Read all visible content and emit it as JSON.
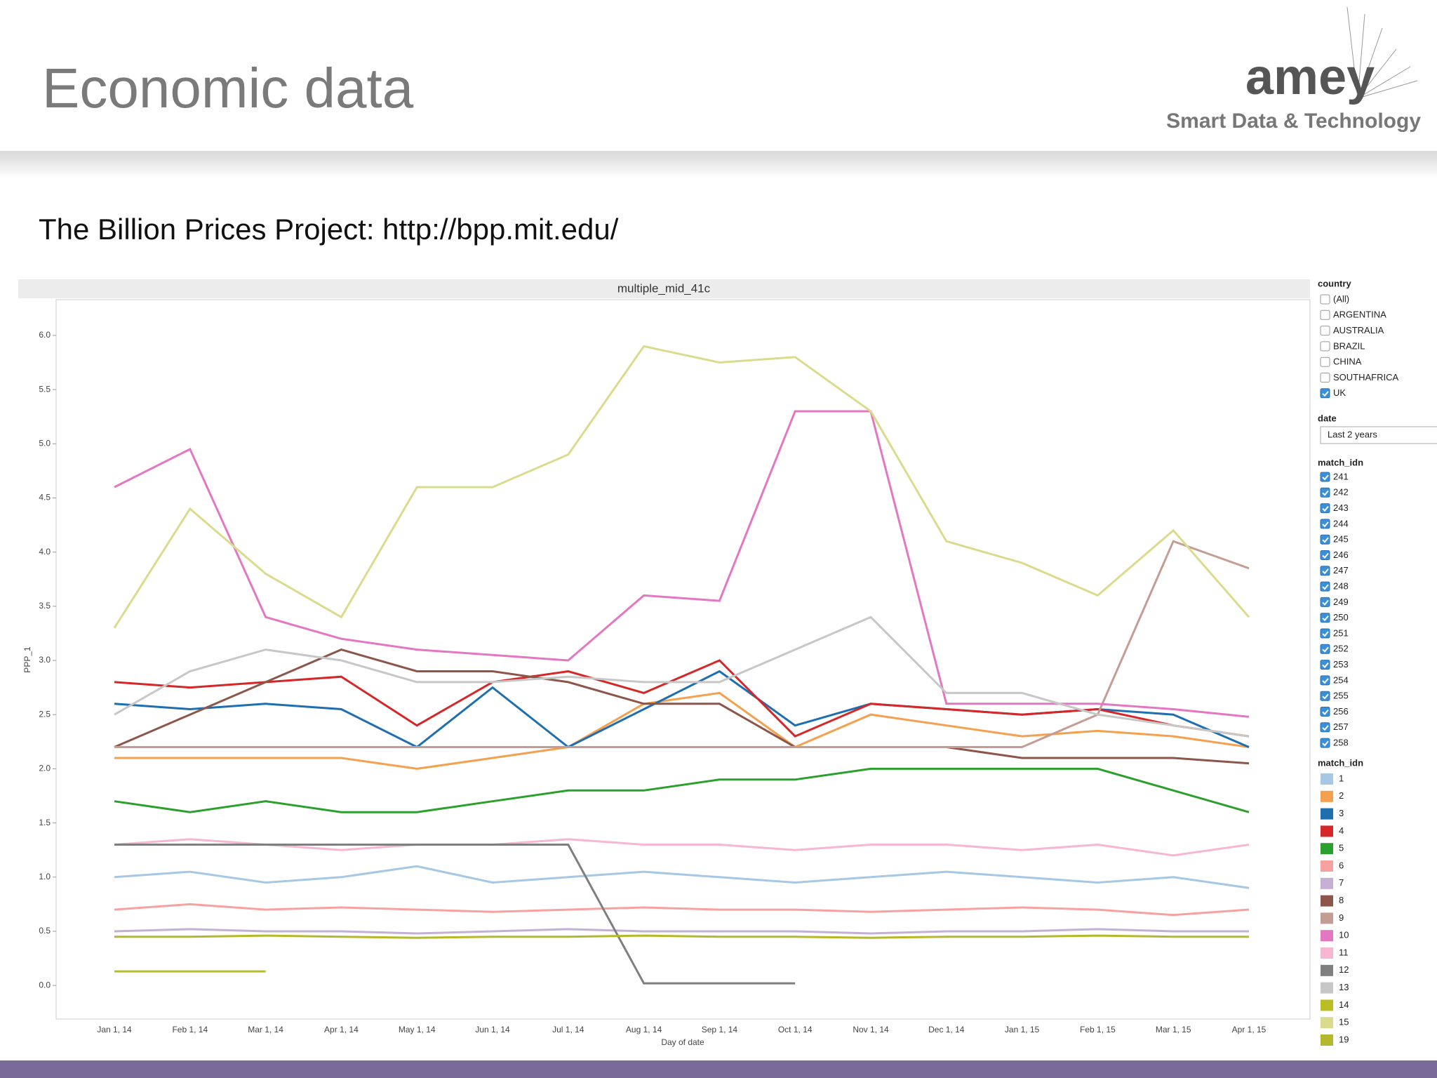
{
  "header": {
    "title": "Economic data",
    "logo": "amey",
    "tagline": "Smart Data & Technology"
  },
  "subtitle": "The Billion Prices Project: http://bpp.mit.edu/",
  "chart_data": {
    "type": "line",
    "title": "multiple_mid_41c",
    "x_label": "Day of date",
    "y_label": "PPP_1",
    "categories": [
      "Jan 1, 14",
      "Feb 1, 14",
      "Mar 1, 14",
      "Apr 1, 14",
      "May 1, 14",
      "Jun 1, 14",
      "Jul 1, 14",
      "Aug 1, 14",
      "Sep 1, 14",
      "Oct 1, 14",
      "Nov 1, 14",
      "Dec 1, 14",
      "Jan 1, 15",
      "Feb 1, 15",
      "Mar 1, 15",
      "Apr 1, 15"
    ],
    "ylim": [
      -0.31,
      6.33
    ],
    "yticks": [
      {
        "value": 0,
        "label": "0.0"
      },
      {
        "value": 0.5,
        "label": "0.5"
      },
      {
        "value": 1,
        "label": "1.0"
      },
      {
        "value": 1.5,
        "label": "1.5"
      },
      {
        "value": 2,
        "label": "2.0"
      },
      {
        "value": 2.5,
        "label": "2.5"
      },
      {
        "value": 3,
        "label": "3.0"
      },
      {
        "value": 3.5,
        "label": "3.5"
      },
      {
        "value": 4,
        "label": "4.0"
      },
      {
        "value": 4.5,
        "label": "4.5"
      },
      {
        "value": 5,
        "label": "5.0"
      },
      {
        "value": 5.5,
        "label": "5.5"
      },
      {
        "value": 6,
        "label": "6.0"
      }
    ],
    "legend_title": "match_idn",
    "series": [
      {
        "name": "1",
        "color": "#a6c8e4",
        "values": [
          1.0,
          1.05,
          0.95,
          1.0,
          1.1,
          0.95,
          1.0,
          1.05,
          1.0,
          0.95,
          1.0,
          1.05,
          1.0,
          0.95,
          1.0,
          0.9
        ]
      },
      {
        "name": "2",
        "color": "#f5a04e",
        "values": [
          2.1,
          2.1,
          2.1,
          2.1,
          2.0,
          2.1,
          2.2,
          2.6,
          2.7,
          2.2,
          2.5,
          2.4,
          2.3,
          2.35,
          2.3,
          2.2
        ]
      },
      {
        "name": "3",
        "color": "#1f6fb0",
        "values": [
          2.6,
          2.55,
          2.6,
          2.55,
          2.2,
          2.75,
          2.2,
          2.55,
          2.9,
          2.4,
          2.6,
          2.55,
          2.5,
          2.55,
          2.5,
          2.2
        ]
      },
      {
        "name": "4",
        "color": "#d62728",
        "values": [
          2.8,
          2.75,
          2.8,
          2.85,
          2.4,
          2.8,
          2.9,
          2.7,
          3.0,
          2.3,
          2.6,
          2.55,
          2.5,
          2.55,
          2.4,
          2.3
        ]
      },
      {
        "name": "5",
        "color": "#2ca02c",
        "values": [
          1.7,
          1.6,
          1.7,
          1.6,
          1.6,
          1.7,
          1.8,
          1.8,
          1.9,
          1.9,
          2.0,
          2.0,
          2.0,
          2.0,
          1.8,
          1.6
        ]
      },
      {
        "name": "6",
        "color": "#f7a1a0",
        "values": [
          0.7,
          0.75,
          0.7,
          0.72,
          0.7,
          0.68,
          0.7,
          0.72,
          0.7,
          0.7,
          0.68,
          0.7,
          0.72,
          0.7,
          0.65,
          0.7
        ]
      },
      {
        "name": "7",
        "color": "#c5b0d5",
        "values": [
          0.5,
          0.52,
          0.5,
          0.5,
          0.48,
          0.5,
          0.52,
          0.5,
          0.5,
          0.5,
          0.48,
          0.5,
          0.5,
          0.52,
          0.5,
          0.5
        ]
      },
      {
        "name": "8",
        "color": "#8c564b",
        "values": [
          2.2,
          2.5,
          2.8,
          3.1,
          2.9,
          2.9,
          2.8,
          2.6,
          2.6,
          2.2,
          2.2,
          2.2,
          2.1,
          2.1,
          2.1,
          2.05
        ]
      },
      {
        "name": "9",
        "color": "#c49c94",
        "values": [
          2.2,
          2.2,
          2.2,
          2.2,
          2.2,
          2.2,
          2.2,
          2.2,
          2.2,
          2.2,
          2.2,
          2.2,
          2.2,
          2.5,
          4.1,
          3.85
        ]
      },
      {
        "name": "10",
        "color": "#e377c2",
        "values": [
          4.6,
          4.95,
          3.4,
          3.2,
          3.1,
          3.05,
          3.0,
          3.6,
          3.55,
          5.3,
          5.3,
          2.6,
          2.6,
          2.6,
          2.55,
          2.48
        ]
      },
      {
        "name": "11",
        "color": "#f7b6d2",
        "values": [
          1.3,
          1.35,
          1.3,
          1.25,
          1.3,
          1.3,
          1.35,
          1.3,
          1.3,
          1.25,
          1.3,
          1.3,
          1.25,
          1.3,
          1.2,
          1.3
        ]
      },
      {
        "name": "12",
        "color": "#7f7f7f",
        "values": [
          1.3,
          1.3,
          1.3,
          1.3,
          1.3,
          1.3,
          1.3,
          0.02,
          0.02,
          0.02,
          null,
          null,
          null,
          null,
          null,
          null
        ]
      },
      {
        "name": "13",
        "color": "#c7c7c7",
        "values": [
          2.5,
          2.9,
          3.1,
          3.0,
          2.8,
          2.8,
          2.85,
          2.8,
          2.8,
          3.1,
          3.4,
          2.7,
          2.7,
          2.5,
          2.4,
          2.3
        ]
      },
      {
        "name": "14",
        "color": "#bcbd22",
        "values": [
          0.13,
          0.13,
          0.13,
          null,
          null,
          null,
          null,
          null,
          null,
          null,
          null,
          null,
          null,
          null,
          null,
          null
        ]
      },
      {
        "name": "15",
        "color": "#dbdb8d",
        "values": [
          3.3,
          4.4,
          3.8,
          3.4,
          4.6,
          4.6,
          4.9,
          5.9,
          5.75,
          5.8,
          5.3,
          4.1,
          3.9,
          3.6,
          4.2,
          3.4
        ]
      },
      {
        "name": "19",
        "color": "#b5b82b",
        "values": [
          0.45,
          0.45,
          0.46,
          0.45,
          0.44,
          0.45,
          0.45,
          0.46,
          0.45,
          0.45,
          0.44,
          0.45,
          0.45,
          0.46,
          0.45,
          0.45
        ]
      }
    ]
  },
  "filters": {
    "country": {
      "title": "country",
      "options": [
        {
          "label": "(All)",
          "checked": false
        },
        {
          "label": "ARGENTINA",
          "checked": false
        },
        {
          "label": "AUSTRALIA",
          "checked": false
        },
        {
          "label": "BRAZIL",
          "checked": false
        },
        {
          "label": "CHINA",
          "checked": false
        },
        {
          "label": "SOUTHAFRICA",
          "checked": false
        },
        {
          "label": "UK",
          "checked": true
        }
      ]
    },
    "date": {
      "title": "date",
      "selected": "Last 2 years"
    },
    "match_idn": {
      "title": "match_idn",
      "options": [
        {
          "label": "241",
          "checked": true
        },
        {
          "label": "242",
          "checked": true
        },
        {
          "label": "243",
          "checked": true
        },
        {
          "label": "244",
          "checked": true
        },
        {
          "label": "245",
          "checked": true
        },
        {
          "label": "246",
          "checked": true
        },
        {
          "label": "247",
          "checked": true
        },
        {
          "label": "248",
          "checked": true
        },
        {
          "label": "249",
          "checked": true
        },
        {
          "label": "250",
          "checked": true
        },
        {
          "label": "251",
          "checked": true
        },
        {
          "label": "252",
          "checked": true
        },
        {
          "label": "253",
          "checked": true
        },
        {
          "label": "254",
          "checked": true
        },
        {
          "label": "255",
          "checked": true
        },
        {
          "label": "256",
          "checked": true
        },
        {
          "label": "257",
          "checked": true
        },
        {
          "label": "258",
          "checked": true
        }
      ]
    }
  }
}
